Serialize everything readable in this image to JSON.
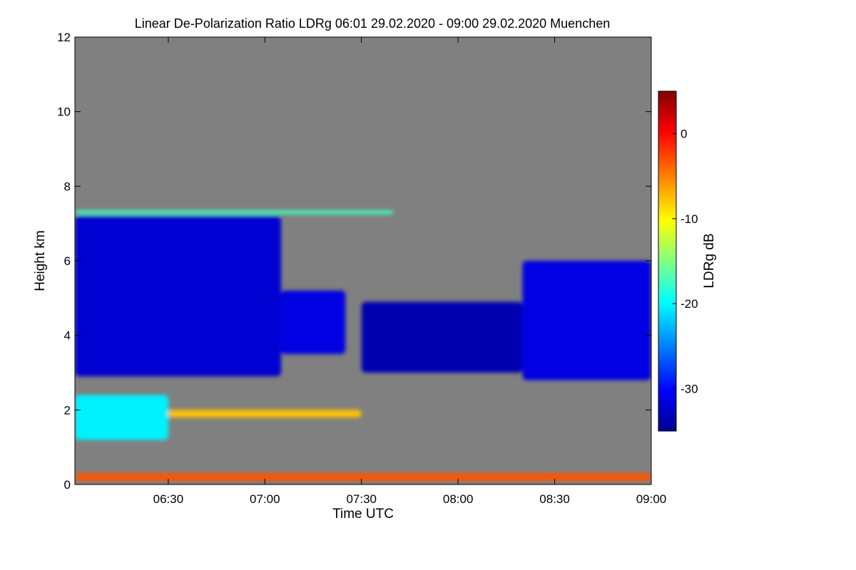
{
  "chart_data": {
    "type": "heatmap",
    "title": "Linear De-Polarization Ratio LDRg   06:01 29.02.2020 - 09:00 29.02.2020 Muenchen",
    "xlabel": "Time UTC",
    "ylabel": "Height km",
    "colorbar_label": "LDRg dB",
    "x_range": [
      "06:01",
      "09:00"
    ],
    "x_ticks": [
      "06:30",
      "07:00",
      "07:30",
      "08:00",
      "08:30",
      "09:00"
    ],
    "y_range": [
      0,
      12
    ],
    "y_ticks": [
      0,
      2,
      4,
      6,
      8,
      10,
      12
    ],
    "colorbar_range": [
      -35,
      5
    ],
    "colorbar_ticks": [
      0,
      -10,
      -20,
      -30
    ],
    "colormap": [
      "#00008f",
      "#0000ff",
      "#00ffff",
      "#ffff00",
      "#ff8000",
      "#ff0000",
      "#800000"
    ],
    "background_color": "#808080",
    "regions": [
      {
        "t_start": "06:01",
        "t_end": "07:05",
        "z_bottom": 2.9,
        "z_top": 7.2,
        "ldr": -31
      },
      {
        "t_start": "07:05",
        "t_end": "07:25",
        "z_bottom": 3.5,
        "z_top": 5.2,
        "ldr": -30
      },
      {
        "t_start": "07:30",
        "t_end": "08:20",
        "z_bottom": 3.0,
        "z_top": 4.9,
        "ldr": -33
      },
      {
        "t_start": "08:20",
        "t_end": "09:00",
        "z_bottom": 2.8,
        "z_top": 6.0,
        "ldr": -30
      },
      {
        "t_start": "06:01",
        "t_end": "06:30",
        "z_bottom": 1.2,
        "z_top": 2.4,
        "ldr": -22
      },
      {
        "t_start": "06:30",
        "t_end": "07:30",
        "z_bottom": 1.8,
        "z_top": 2.0,
        "ldr": -12
      },
      {
        "t_start": "06:01",
        "t_end": "09:00",
        "z_bottom": 0.1,
        "z_top": 0.3,
        "ldr": -6
      },
      {
        "t_start": "06:01",
        "t_end": "07:40",
        "z_bottom": 7.25,
        "z_top": 7.35,
        "ldr": -20
      }
    ]
  }
}
